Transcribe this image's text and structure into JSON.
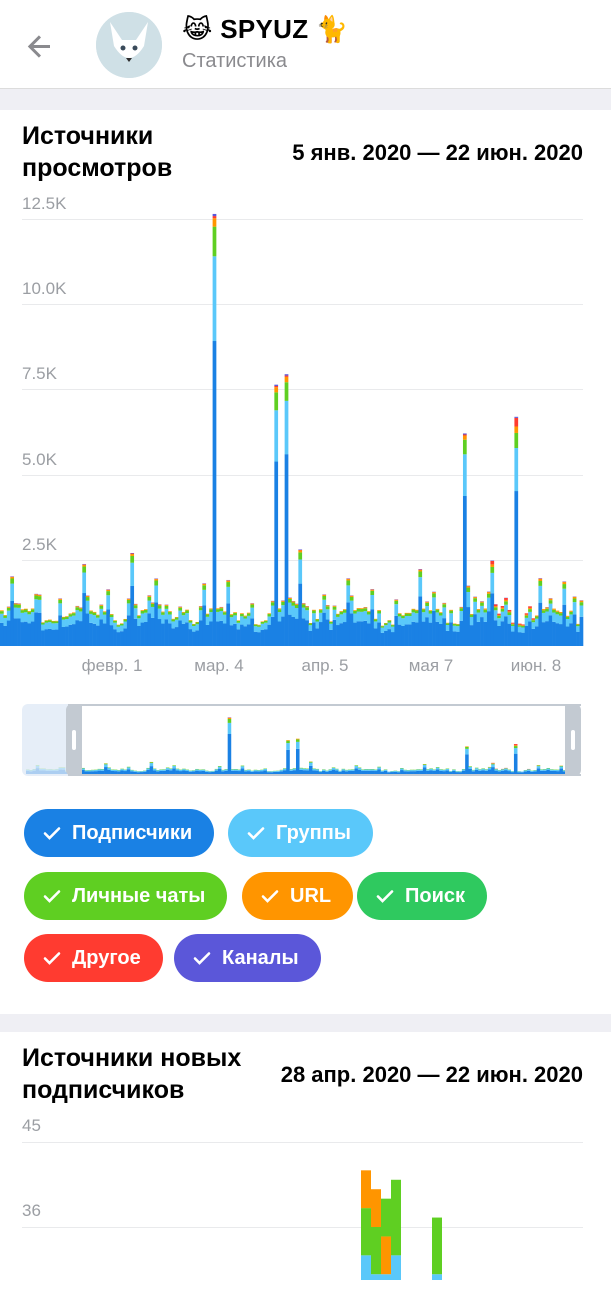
{
  "header": {
    "title": "😹 SPYUZ 🐈",
    "subtitle": "Статистика"
  },
  "views_card": {
    "title": "Источники\nпросмотров",
    "range": "5 янв. 2020 — 22 июн. 2020"
  },
  "subs_card": {
    "title": "Источники новых\nподписчиков",
    "range": "28 апр. 2020 — 22 июн. 2020"
  },
  "colors": {
    "subscribers": "#1a81e4",
    "groups": "#5ac8fa",
    "private_chats": "#5fcf22",
    "url": "#ff9500",
    "search": "#2fc95f",
    "other": "#ff3b30",
    "channels": "#5b57d9"
  },
  "legend": [
    {
      "key": "subscribers",
      "label": "Подписчики"
    },
    {
      "key": "groups",
      "label": "Группы"
    },
    {
      "key": "private_chats",
      "label": "Личные чаты"
    },
    {
      "key": "url",
      "label": "URL"
    },
    {
      "key": "search",
      "label": "Поиск"
    },
    {
      "key": "other",
      "label": "Другое"
    },
    {
      "key": "channels",
      "label": "Каналы"
    }
  ],
  "chart_data": [
    {
      "type": "bar",
      "stacked": true,
      "title": "Источники просмотров",
      "period": "5 янв. 2020 — 22 июн. 2020",
      "x_range": [
        "2020-01-05",
        "2020-06-22"
      ],
      "x_tick_labels": [
        "февр. 1",
        "мар. 4",
        "апр. 5",
        "мая 7",
        "июн. 8"
      ],
      "y_tick_labels": [
        "2.5K",
        "5.0K",
        "7.5K",
        "10.0K",
        "12.5K"
      ],
      "ylim": [
        0,
        12500
      ],
      "grid": true,
      "peaks": [
        {
          "date": "2020-03-07",
          "total": 12400
        },
        {
          "date": "2020-03-25",
          "total": 7500
        },
        {
          "date": "2020-03-28",
          "total": 7800
        },
        {
          "date": "2020-05-19",
          "total": 6100
        },
        {
          "date": "2020-06-03",
          "total": 6300
        }
      ],
      "typical_daily_total_range": [
        500,
        2500
      ]
    },
    {
      "type": "bar",
      "stacked": true,
      "title": "Источники новых подписчиков",
      "period": "28 апр. 2020 — 22 июн. 2020",
      "y_tick_labels": [
        "36",
        "45"
      ],
      "ylim": [
        27,
        45
      ],
      "grid": true
    }
  ]
}
